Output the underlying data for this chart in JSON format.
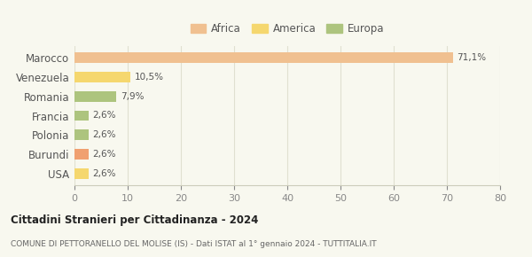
{
  "categories": [
    "Marocco",
    "Venezuela",
    "Romania",
    "Francia",
    "Polonia",
    "Burundi",
    "USA"
  ],
  "values": [
    71.1,
    10.5,
    7.9,
    2.6,
    2.6,
    2.6,
    2.6
  ],
  "labels": [
    "71,1%",
    "10,5%",
    "7,9%",
    "2,6%",
    "2,6%",
    "2,6%",
    "2,6%"
  ],
  "colors": [
    "#f0c090",
    "#f5d76e",
    "#adc47e",
    "#adc47e",
    "#adc47e",
    "#f0a070",
    "#f5d76e"
  ],
  "legend": [
    {
      "label": "Africa",
      "color": "#f0c090"
    },
    {
      "label": "America",
      "color": "#f5d76e"
    },
    {
      "label": "Europa",
      "color": "#adc47e"
    }
  ],
  "xlim": [
    0,
    80
  ],
  "xticks": [
    0,
    10,
    20,
    30,
    40,
    50,
    60,
    70,
    80
  ],
  "title": "Cittadini Stranieri per Cittadinanza - 2024",
  "subtitle": "COMUNE DI PETTORANELLO DEL MOLISE (IS) - Dati ISTAT al 1° gennaio 2024 - TUTTITALIA.IT",
  "background_color": "#f8f8ef",
  "grid_color": "#e0e0d0"
}
